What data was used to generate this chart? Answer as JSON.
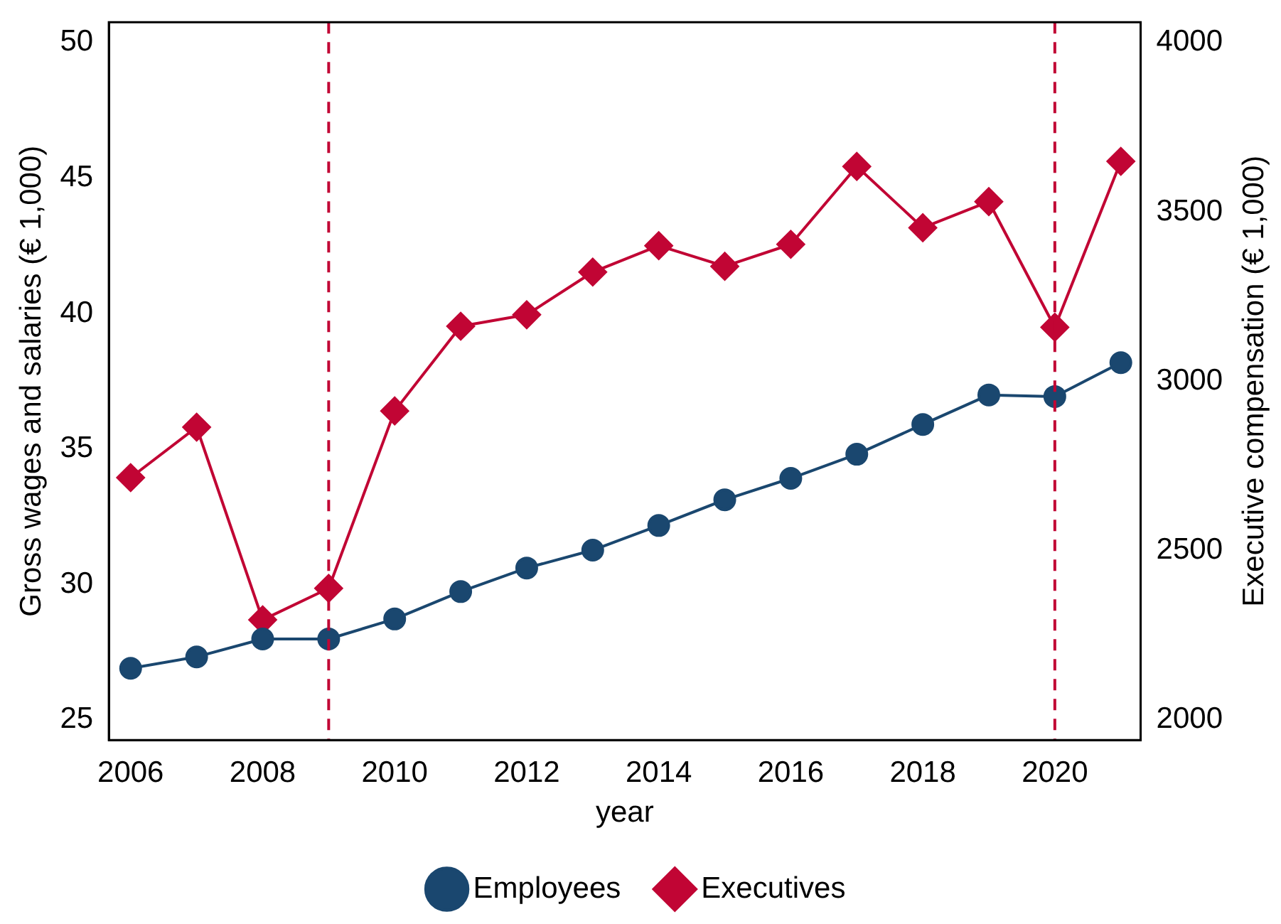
{
  "chart_data": {
    "type": "line",
    "xlabel": "year",
    "ylabel": "Gross wages and salaries (€ 1,000)",
    "y2label": "Executive compensation (€ 1,000)",
    "x": [
      2006,
      2007,
      2008,
      2009,
      2010,
      2011,
      2012,
      2013,
      2014,
      2015,
      2016,
      2017,
      2018,
      2019,
      2020,
      2021
    ],
    "series": [
      {
        "name": "Employees",
        "color": "#1a476f",
        "marker": "circle",
        "values": [
          26.9,
          27.32,
          27.98,
          27.98,
          28.72,
          29.73,
          30.6,
          31.26,
          32.17,
          33.12,
          33.91,
          34.8,
          35.9,
          36.99,
          36.93,
          38.18
        ]
      },
      {
        "name": "Executives",
        "color": "#c10534",
        "marker": "diamond",
        "axis": "y2",
        "values": [
          2715,
          2864,
          2295,
          2388,
          2912,
          3162,
          3196,
          3322,
          3400,
          3339,
          3404,
          3634,
          3453,
          3530,
          3159,
          3649
        ]
      }
    ],
    "xlim": [
      2005.67,
      2021.3
    ],
    "xticks": [
      2006,
      2008,
      2010,
      2012,
      2014,
      2016,
      2018,
      2020
    ],
    "ylim": [
      24.25,
      50.75
    ],
    "yticks": [
      25,
      30,
      35,
      40,
      45,
      50
    ],
    "y2lim": [
      1940,
      4060
    ],
    "y2ticks": [
      2000,
      2500,
      3000,
      3500,
      4000
    ],
    "ref_lines": [
      {
        "axis": "x",
        "value": 2009,
        "color": "#c10534",
        "line_style": "dashed"
      },
      {
        "axis": "x",
        "value": 2020,
        "color": "#c10534",
        "line_style": "dashed"
      }
    ],
    "grid": false,
    "legend": "bottom",
    "line_style": "solid"
  }
}
